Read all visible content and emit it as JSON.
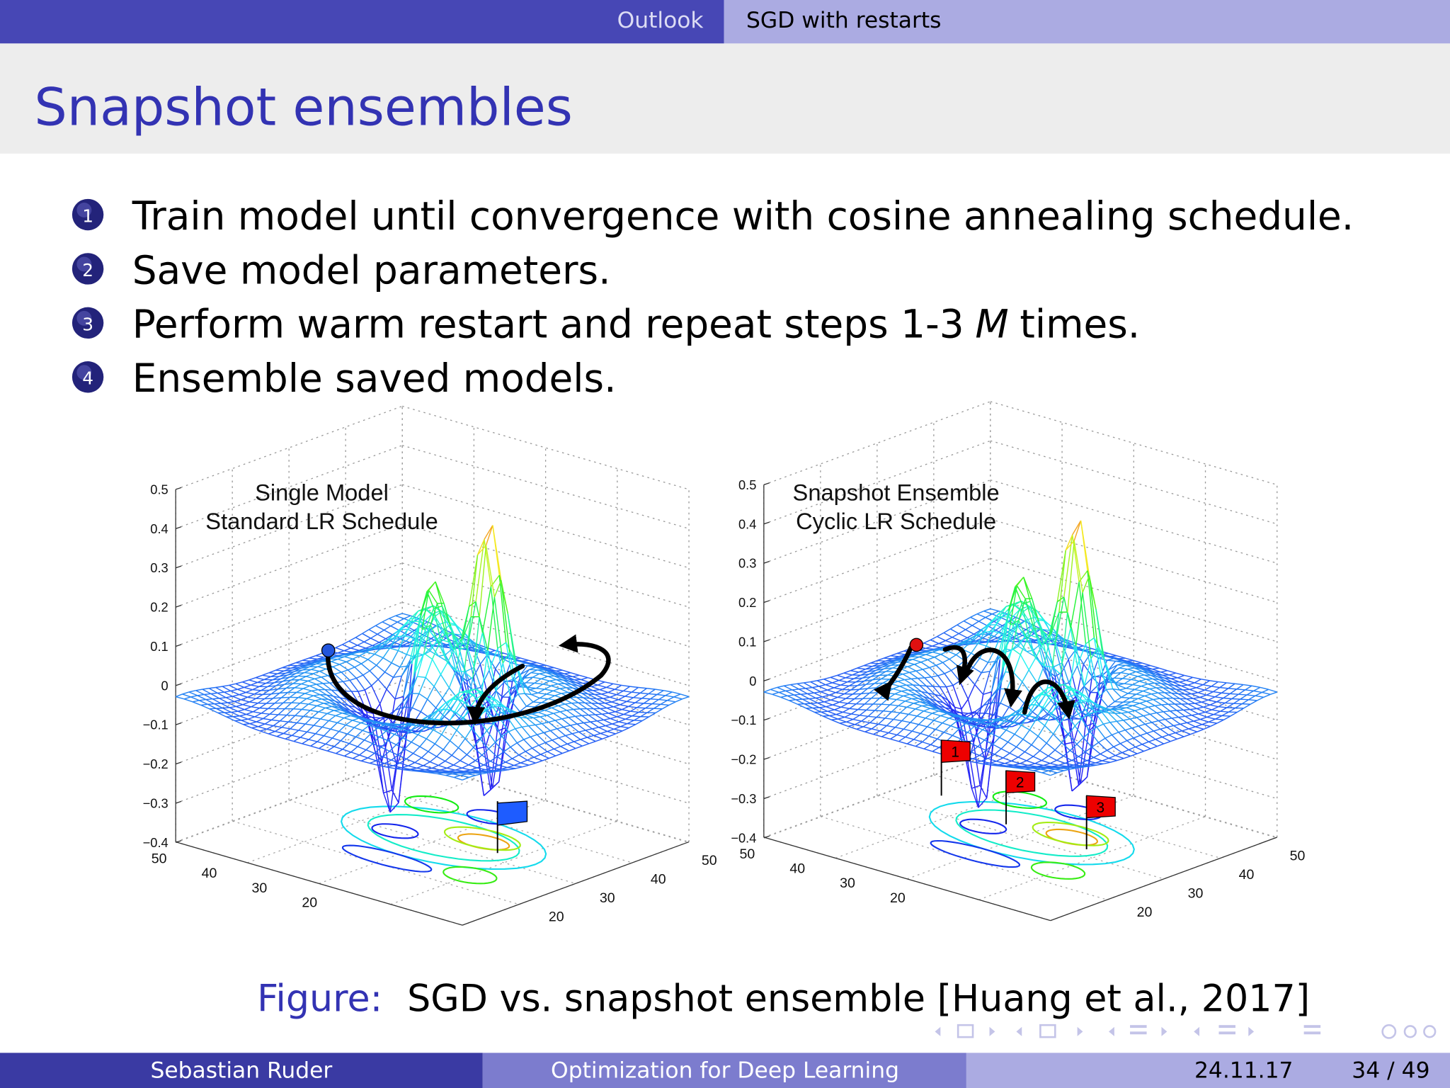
{
  "header": {
    "sections": [
      "Outlook",
      "SGD with restarts"
    ]
  },
  "title": "Snapshot ensembles",
  "steps": [
    {
      "number": "1",
      "text": "Train model until convergence with cosine annealing schedule."
    },
    {
      "number": "2",
      "text": "Save model parameters."
    },
    {
      "number": "3",
      "text": "Perform warm restart and repeat steps 1-3",
      "variable": "M",
      "text_after": "times."
    },
    {
      "number": "4",
      "text": "Ensemble saved models."
    }
  ],
  "figure": {
    "panels": [
      {
        "title_lines": [
          "Single Model",
          "Standard LR Schedule"
        ],
        "z_ticks": [
          "0.5",
          "0.4",
          "0.3",
          "0.2",
          "0.1",
          "0",
          "−0.1",
          "−0.2",
          "−0.3",
          "−0.4"
        ],
        "left_ticks": [
          "50",
          "40",
          "30",
          "20"
        ],
        "right_ticks": [
          "50",
          "40",
          "30",
          "20"
        ]
      },
      {
        "title_lines": [
          "Snapshot Ensemble",
          "Cyclic LR Schedule"
        ],
        "z_ticks": [
          "0.5",
          "0.4",
          "0.3",
          "0.2",
          "0.1",
          "0",
          "−0.1",
          "−0.2",
          "−0.3",
          "−0.4"
        ],
        "left_ticks": [
          "50",
          "40",
          "30",
          "20"
        ],
        "right_ticks": [
          "50",
          "40",
          "30",
          "20"
        ],
        "flags": [
          "1",
          "2",
          "3"
        ]
      }
    ],
    "caption_label": "Figure:",
    "caption": "SGD vs. snapshot ensemble [Huang et al., 2017]"
  },
  "footer": {
    "author": "Sebastian Ruder",
    "talk": "Optimization for Deep Learning",
    "date": "24.11.17",
    "page": "34 / 49"
  }
}
